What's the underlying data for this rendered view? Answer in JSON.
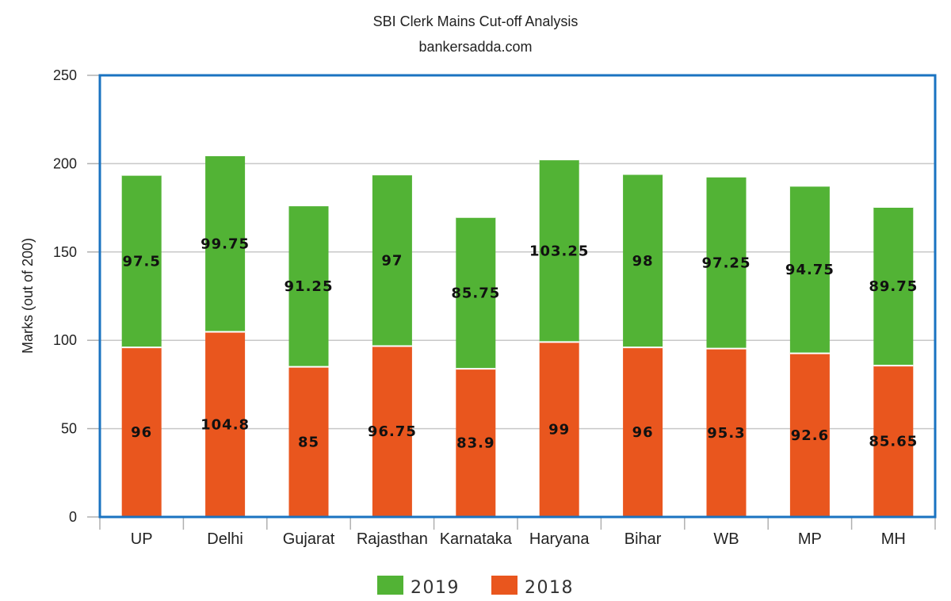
{
  "chart_data": {
    "type": "bar",
    "stacked": true,
    "title": "SBI Clerk Mains Cut-off Analysis",
    "subtitle": "bankersadda.com",
    "xlabel": "",
    "ylabel": "Marks (out of 200)",
    "ylim": [
      0,
      250
    ],
    "yticks": [
      0,
      50,
      100,
      150,
      200,
      250
    ],
    "grid": true,
    "legend_position": "bottom",
    "categories": [
      "UP",
      "Delhi",
      "Gujarat",
      "Rajasthan",
      "Karnataka",
      "Haryana",
      "Bihar",
      "WB",
      "MP",
      "MH"
    ],
    "series": [
      {
        "name": "2018",
        "color": "#e9561e",
        "values": [
          96,
          104.8,
          85,
          96.75,
          83.9,
          99,
          96,
          95.3,
          92.6,
          85.65
        ],
        "labels": [
          "96",
          "104.8",
          "85",
          "96.75",
          "83.9",
          "99",
          "96",
          "95.3",
          "92.6",
          "85.65"
        ]
      },
      {
        "name": "2019",
        "color": "#52b335",
        "values": [
          97.5,
          99.75,
          91.25,
          97,
          85.75,
          103.25,
          98,
          97.25,
          94.75,
          89.75
        ],
        "labels": [
          "97.5",
          "99.75",
          "91.25",
          "97",
          "85.75",
          "103.25",
          "98",
          "97.25",
          "94.75",
          "89.75"
        ]
      }
    ],
    "legend_order": [
      "2019",
      "2018"
    ],
    "frame_color": "#1a73c1"
  }
}
